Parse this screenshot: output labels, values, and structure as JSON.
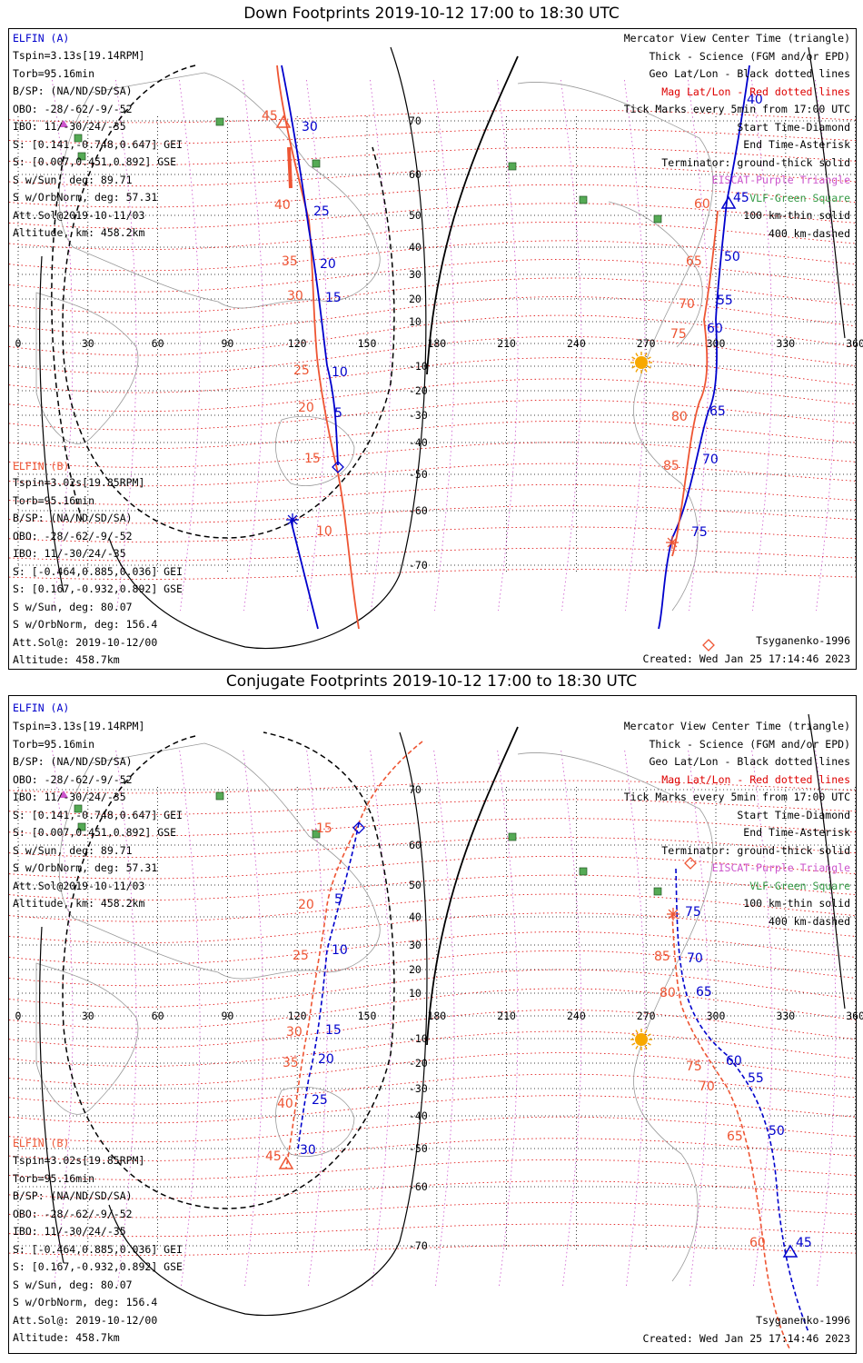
{
  "panels": [
    {
      "title": "Down Footprints 2019-10-12 17:00 to 18:30 UTC",
      "elfin_a": {
        "name": "ELFIN (A)",
        "lines": [
          "Tspin=3.13s[19.14RPM]",
          "Torb=95.16min",
          "B/SP: (NA/ND/SD/SA)",
          "OBO: -28/-62/-9/-52",
          "IBO: 11/-30/24/-35",
          "S: [0.141,-0.748,0.647] GEI",
          "S: [0.007,0.451,0.892] GSE",
          "S w/Sun, deg: 89.71",
          "S w/OrbNorm, deg: 57.31",
          "Att.Sol@2019-10-11/03",
          "Altitude, km: 458.2km"
        ]
      },
      "elfin_b": {
        "name": "ELFIN (B)",
        "lines": [
          "Tspin=3.02s[19.85RPM]",
          "Torb=95.16min",
          "B/SP: (NA/ND/SD/SA)",
          "OBO: -28/-62/-9/-52",
          "IBO: 11/-30/24/-35",
          "S: [-0.464,0.885,0.036] GEI",
          "S: [0.167,-0.932,0.892] GSE",
          "S w/Sun, deg: 80.07",
          "S w/OrbNorm, deg: 156.4",
          "Att.Sol@: 2019-10-12/00",
          "Altitude: 458.7km"
        ]
      },
      "legend": [
        "Mercator View Center Time (triangle)",
        "Thick - Science (FGM and/or EPD)",
        "Geo Lat/Lon - Black dotted lines",
        "Mag Lat/Lon - Red dotted lines",
        "Tick Marks every 5min from 17:00 UTC",
        "Start Time-Diamond",
        "End Time-Asterisk",
        "Terminator: ground-thick solid",
        "EISCAT-Purple Triangle",
        "VLF-Green Square",
        "100 km-thin solid",
        "400 km-dashed"
      ],
      "model": "Tsyganenko-1996",
      "created": "Created: Wed Jan 25 17:14:46 2023"
    },
    {
      "title": "Conjugate Footprints 2019-10-12 17:00 to 18:30 UTC",
      "elfin_a": {
        "name": "ELFIN (A)",
        "lines": [
          "Tspin=3.13s[19.14RPM]",
          "Torb=95.16min",
          "B/SP: (NA/ND/SD/SA)",
          "OBO: -28/-62/-9/-52",
          "IBO: 11/-30/24/-35",
          "S: [0.141,-0.748,0.647] GEI",
          "S: [0.007,0.451,0.892] GSE",
          "S w/Sun, deg: 89.71",
          "S w/OrbNorm, deg: 57.31",
          "Att.Sol@2019-10-11/03",
          "Altitude, km: 458.2km"
        ]
      },
      "elfin_b": {
        "name": "ELFIN (B)",
        "lines": [
          "Tspin=3.02s[19.85RPM]",
          "Torb=95.16min",
          "B/SP: (NA/ND/SD/SA)",
          "OBO: -28/-62/-9/-52",
          "IBO: 11/-30/24/-35",
          "S: [-0.464,0.885,0.036] GEI",
          "S: [0.167,-0.932,0.892] GSE",
          "S w/Sun, deg: 80.07",
          "S w/OrbNorm, deg: 156.4",
          "Att.Sol@: 2019-10-12/00",
          "Altitude: 458.7km"
        ]
      },
      "legend": [
        "Mercator View Center Time (triangle)",
        "Thick - Science (FGM and/or EPD)",
        "Geo Lat/Lon - Black dotted lines",
        "Mag Lat/Lon - Red dotted lines",
        "Tick Marks every 5min from 17:00 UTC",
        "Start Time-Diamond",
        "End Time-Asterisk",
        "Terminator: ground-thick solid",
        "EISCAT-Purple Triangle",
        "VLF-Green Square",
        "100 km-thin solid",
        "400 km-dashed"
      ],
      "model": "Tsyganenko-1996",
      "created": "Created: Wed Jan 25 17:14:46 2023"
    }
  ],
  "map": {
    "lon_ticks": [
      "0",
      "30",
      "60",
      "90",
      "120",
      "150",
      "180",
      "210",
      "240",
      "270",
      "300",
      "330",
      "360"
    ],
    "lat_ticks": [
      "70",
      "60",
      "50",
      "40",
      "30",
      "20",
      "10",
      "-10",
      "-20",
      "-30",
      "-40",
      "-50",
      "-60",
      "-70"
    ]
  },
  "colors": {
    "elfin_a": "#0000cc",
    "elfin_b": "#ee5533",
    "mag_grid": "#dd0000",
    "geo_grid": "#000000",
    "eiscat": "#cc55cc",
    "vlf": "#339944"
  },
  "track_labels": {
    "p0_blue": [
      "40",
      "45",
      "50",
      "55",
      "60",
      "65",
      "70",
      "75",
      "30",
      "25",
      "20",
      "15",
      "10",
      "5"
    ],
    "p0_orange": [
      "45",
      "40",
      "35",
      "30",
      "25",
      "20",
      "15",
      "10",
      "60",
      "65",
      "70",
      "75",
      "80",
      "85"
    ],
    "p1_blue": [
      "5",
      "10",
      "15",
      "20",
      "25",
      "30",
      "75",
      "70",
      "65",
      "60",
      "55",
      "50",
      "45"
    ],
    "p1_orange": [
      "15",
      "20",
      "25",
      "30",
      "35",
      "40",
      "45",
      "85",
      "80",
      "75",
      "70",
      "65",
      "60"
    ]
  }
}
